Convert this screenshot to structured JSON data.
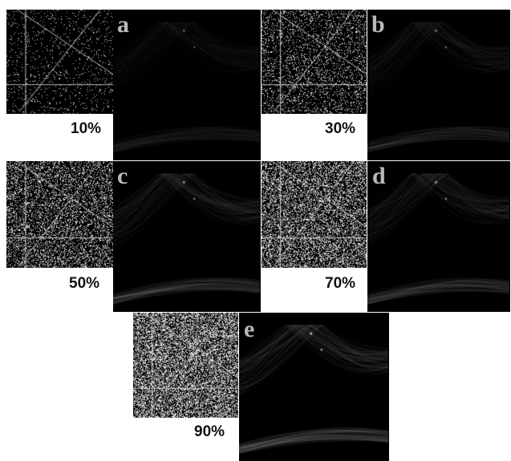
{
  "panels": [
    {
      "id": "a",
      "letter": "a",
      "noise_label": "10%",
      "noise_density": 0.1,
      "curve_brightness": 0.1
    },
    {
      "id": "b",
      "letter": "b",
      "noise_label": "30%",
      "noise_density": 0.3,
      "curve_brightness": 0.25
    },
    {
      "id": "c",
      "letter": "c",
      "noise_label": "50%",
      "noise_density": 0.5,
      "curve_brightness": 0.45
    },
    {
      "id": "d",
      "letter": "d",
      "noise_label": "70%",
      "noise_density": 0.7,
      "curve_brightness": 0.55
    },
    {
      "id": "e",
      "letter": "e",
      "noise_label": "90%",
      "noise_density": 0.9,
      "curve_brightness": 0.75
    }
  ],
  "colors": {
    "background": "#ffffff",
    "image_background": "#000000",
    "letter_color": "#b9b9b9",
    "label_color": "#111111"
  }
}
